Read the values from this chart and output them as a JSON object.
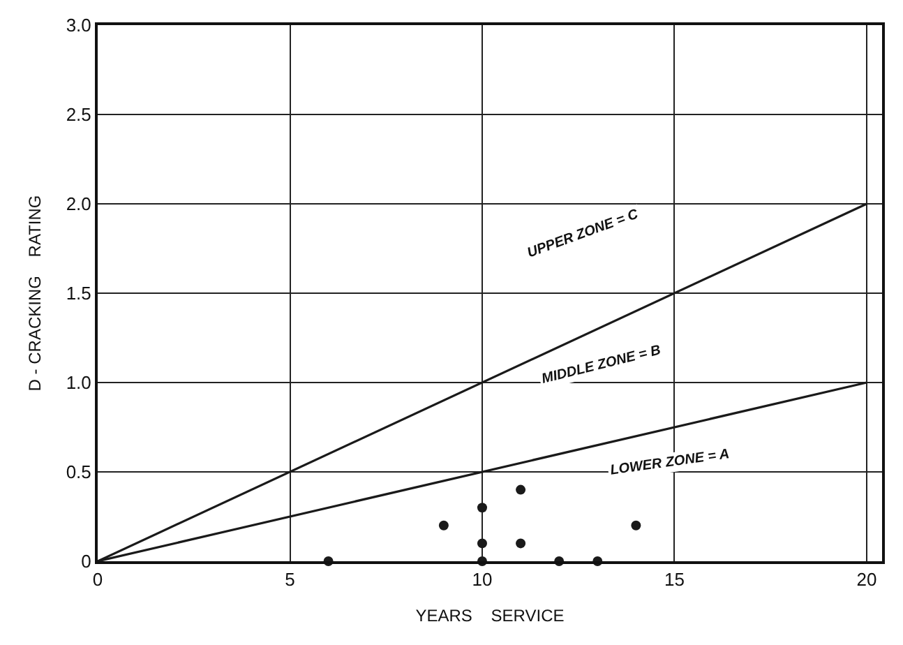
{
  "chart_data": {
    "type": "scatter",
    "xlabel": "YEARS    SERVICE",
    "ylabel": "D - CRACKING    RATING",
    "xlim": [
      0,
      20.4
    ],
    "ylim": [
      0,
      3.0
    ],
    "xticks": [
      0,
      5,
      10,
      15,
      20
    ],
    "yticks": [
      0,
      0.5,
      {
        "value": 1.0,
        "label": "1.0"
      },
      1.5,
      {
        "value": 2.0,
        "label": "2.0"
      },
      2.5,
      {
        "value": 3.0,
        "label": "3.0"
      }
    ],
    "grid": true,
    "marker": "circle",
    "series": [
      {
        "type": "line",
        "color": "#1a1a1a",
        "x": [
          0,
          20
        ],
        "values": [
          0,
          2.0
        ],
        "marker": "none",
        "line_style": "solid"
      },
      {
        "type": "line",
        "color": "#1a1a1a",
        "x": [
          0,
          20
        ],
        "values": [
          0,
          1.0
        ],
        "marker": "none",
        "line_style": "solid"
      },
      {
        "color": "#1a1a1a",
        "x": [
          6,
          9,
          10,
          10,
          10,
          11,
          11,
          12,
          13,
          14
        ],
        "values": [
          0,
          0.2,
          0.3,
          0.1,
          0,
          0.4,
          0.1,
          0,
          0,
          0.2
        ]
      }
    ],
    "annotations": [
      "UPPER ZONE = C",
      "MIDDLE ZONE = B",
      "LOWER ZONE = A"
    ]
  }
}
